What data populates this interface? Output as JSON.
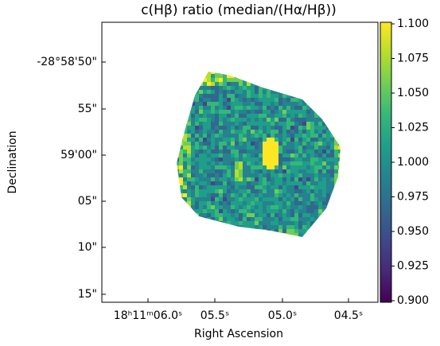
{
  "chart_data": {
    "type": "image",
    "title": "c(Hβ) ratio (median/(Hα/Hβ))",
    "xlabel": "Right Ascension",
    "ylabel": "Declination",
    "xticklabels": [
      "18ʰ11ᵐ06.0ˢ",
      "05.5ˢ",
      "05.0ˢ",
      "04.5ˢ"
    ],
    "yticklabels": [
      "-28°58'50\"",
      "55\"",
      "59'00\"",
      "05\"",
      "10\"",
      "15\""
    ],
    "colormap": "viridis",
    "clim": [
      0.9,
      1.1
    ],
    "cticks": [
      {
        "value": 0.9,
        "label": "0.900"
      },
      {
        "value": 0.925,
        "label": "0.925"
      },
      {
        "value": 0.95,
        "label": "0.950"
      },
      {
        "value": 0.975,
        "label": "0.975"
      },
      {
        "value": 1.0,
        "label": "1.000"
      },
      {
        "value": 1.025,
        "label": "1.025"
      },
      {
        "value": 1.05,
        "label": "1.050"
      },
      {
        "value": 1.075,
        "label": "1.075"
      },
      {
        "value": 1.1,
        "label": "1.100"
      }
    ]
  }
}
